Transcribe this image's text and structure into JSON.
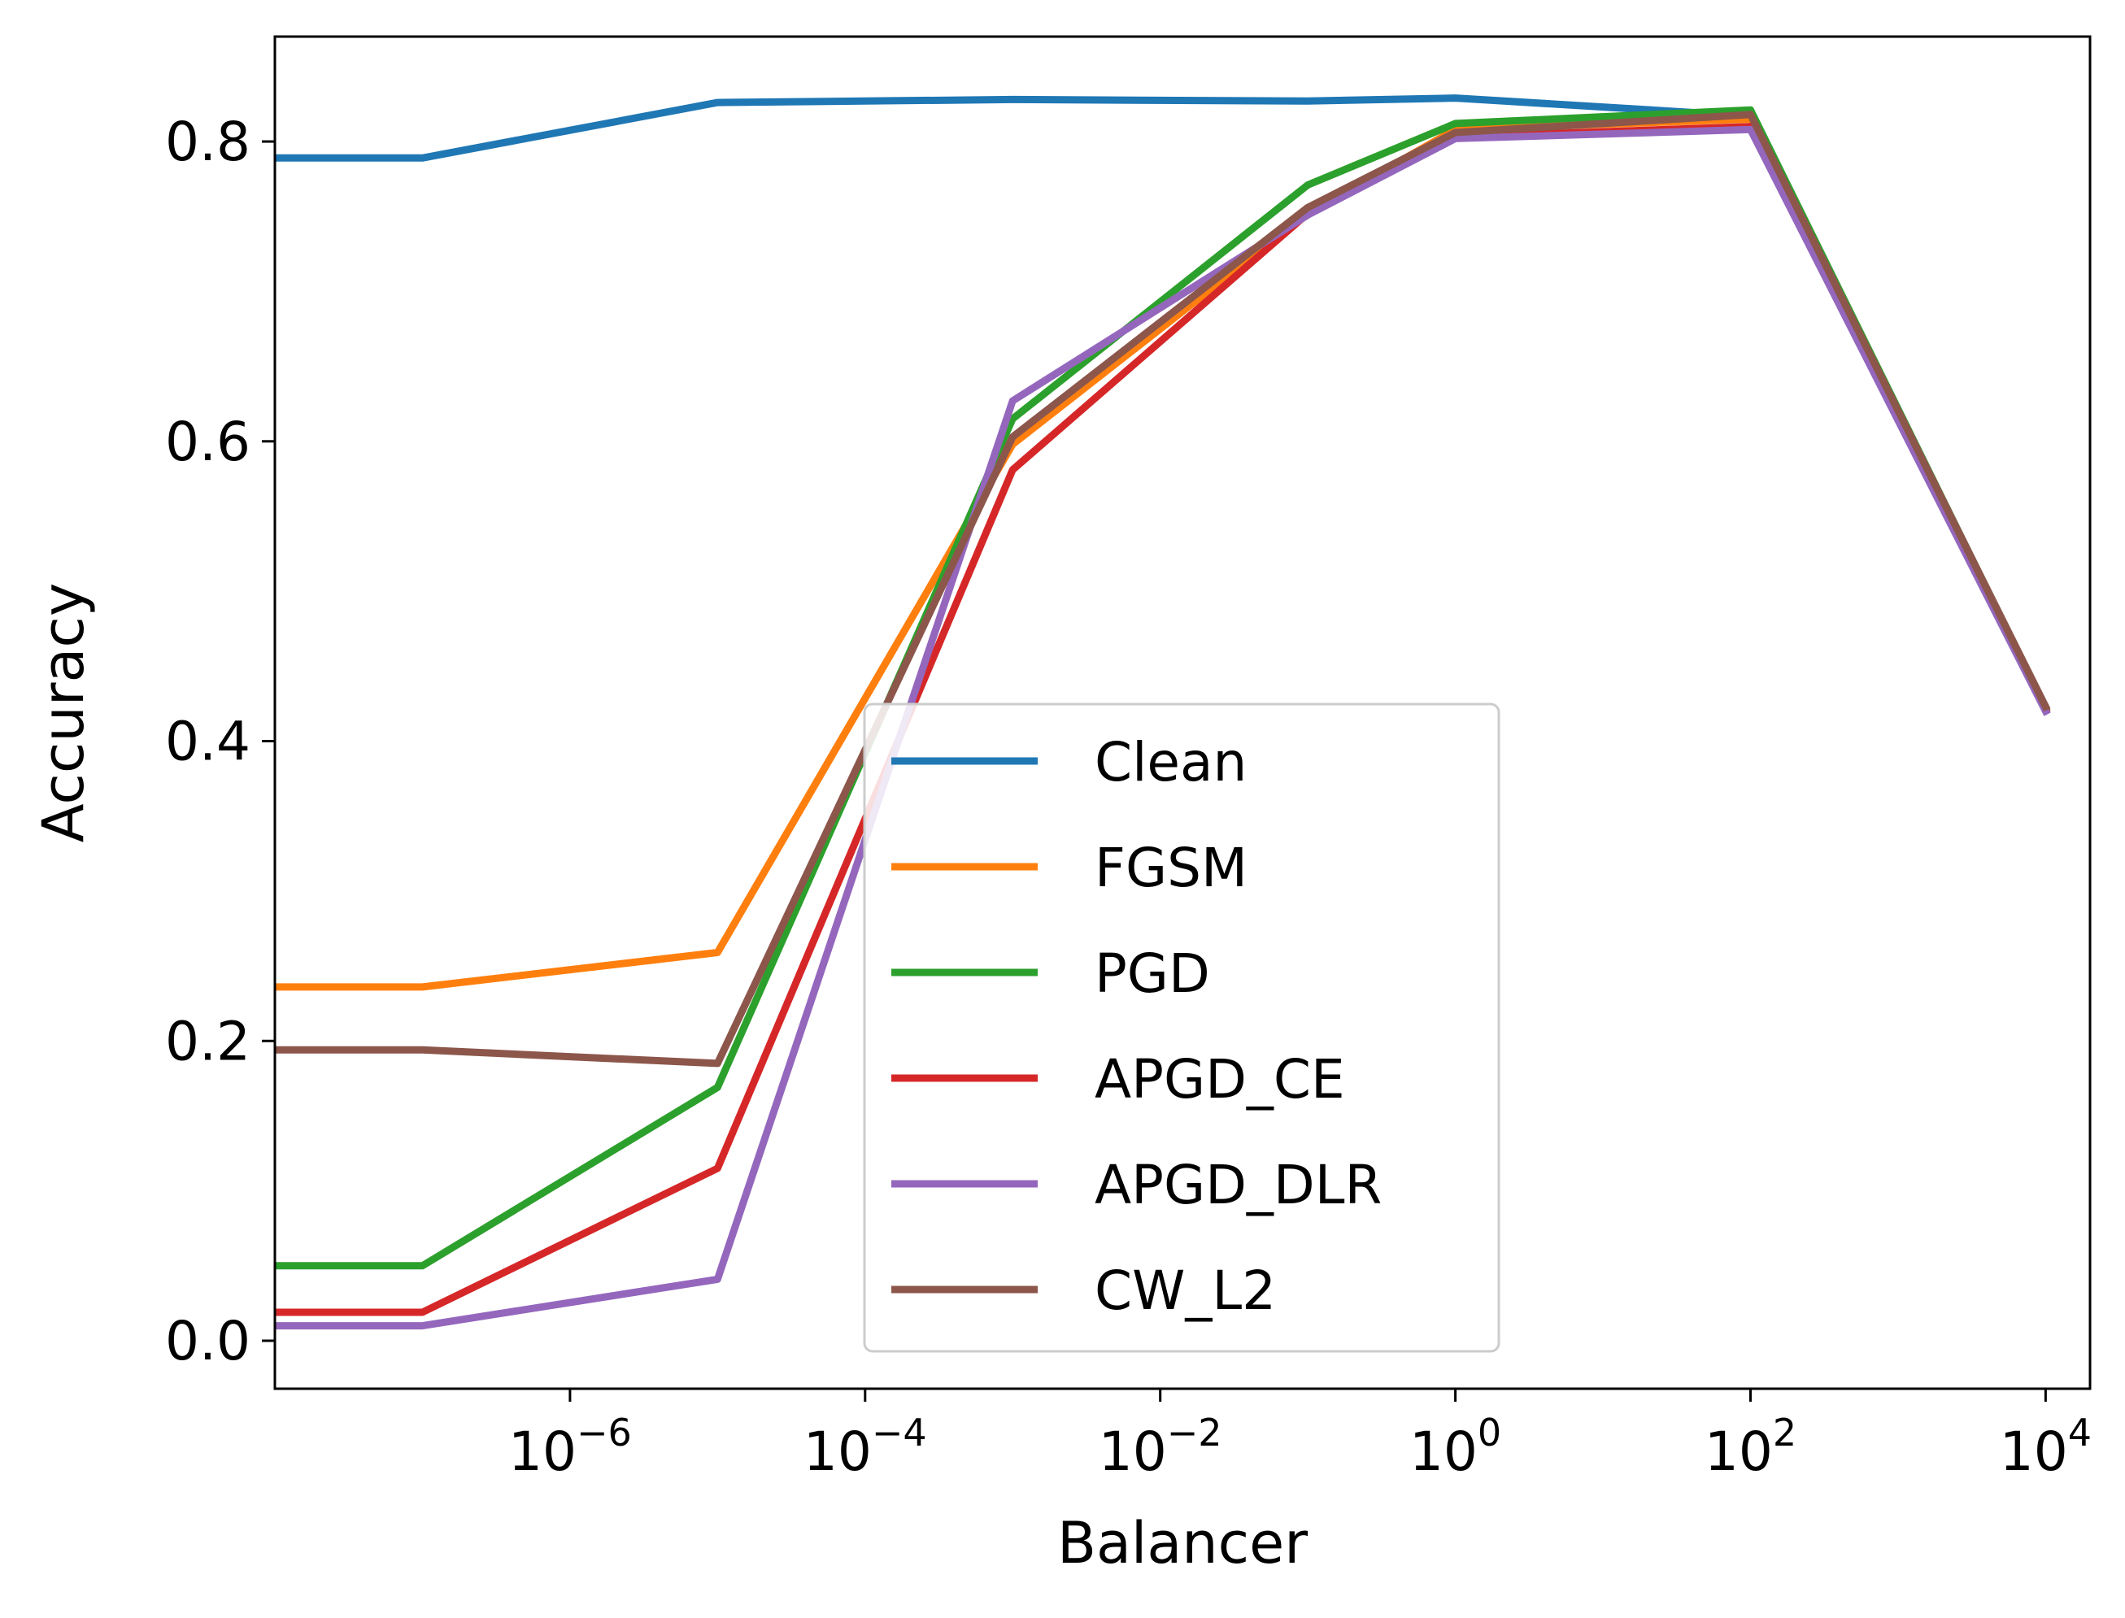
{
  "chart_data": {
    "type": "line",
    "xlabel": "Balancer",
    "ylabel": "Accuracy",
    "xscale": "log",
    "xlim": [
      1e-08,
      20000
    ],
    "ylim": [
      -0.032,
      0.87
    ],
    "grid": false,
    "legend_position": "lower-center",
    "x": [
      1e-08,
      1e-07,
      1e-05,
      0.001,
      0.1,
      1,
      100,
      10000
    ],
    "x_ticks": [
      {
        "base": "10",
        "exp": "−6",
        "value": 1e-06
      },
      {
        "base": "10",
        "exp": "−4",
        "value": 0.0001
      },
      {
        "base": "10",
        "exp": "−2",
        "value": 0.01
      },
      {
        "base": "10",
        "exp": "0",
        "value": 1
      },
      {
        "base": "10",
        "exp": "2",
        "value": 100
      },
      {
        "base": "10",
        "exp": "4",
        "value": 10000
      }
    ],
    "y_ticks": [
      {
        "label": "0.0",
        "value": 0.0
      },
      {
        "label": "0.2",
        "value": 0.2
      },
      {
        "label": "0.4",
        "value": 0.4
      },
      {
        "label": "0.6",
        "value": 0.6
      },
      {
        "label": "0.8",
        "value": 0.8
      }
    ],
    "series": [
      {
        "name": "Clean",
        "color": "#1f77b4",
        "values": [
          0.789,
          0.789,
          0.826,
          0.828,
          0.827,
          0.829,
          0.817,
          0.421
        ]
      },
      {
        "name": "FGSM",
        "color": "#ff7f0e",
        "values": [
          0.236,
          0.236,
          0.259,
          0.598,
          0.752,
          0.808,
          0.815,
          0.421
        ]
      },
      {
        "name": "PGD",
        "color": "#2ca02c",
        "values": [
          0.05,
          0.05,
          0.169,
          0.615,
          0.771,
          0.812,
          0.821,
          0.422
        ]
      },
      {
        "name": "APGD_CE",
        "color": "#d62728",
        "values": [
          0.019,
          0.019,
          0.115,
          0.581,
          0.752,
          0.803,
          0.81,
          0.421
        ]
      },
      {
        "name": "APGD_DLR",
        "color": "#9467bd",
        "values": [
          0.01,
          0.01,
          0.041,
          0.627,
          0.751,
          0.802,
          0.808,
          0.42
        ]
      },
      {
        "name": "CW_L2",
        "color": "#8c564b",
        "values": [
          0.194,
          0.194,
          0.185,
          0.603,
          0.756,
          0.806,
          0.818,
          0.423
        ]
      }
    ]
  }
}
